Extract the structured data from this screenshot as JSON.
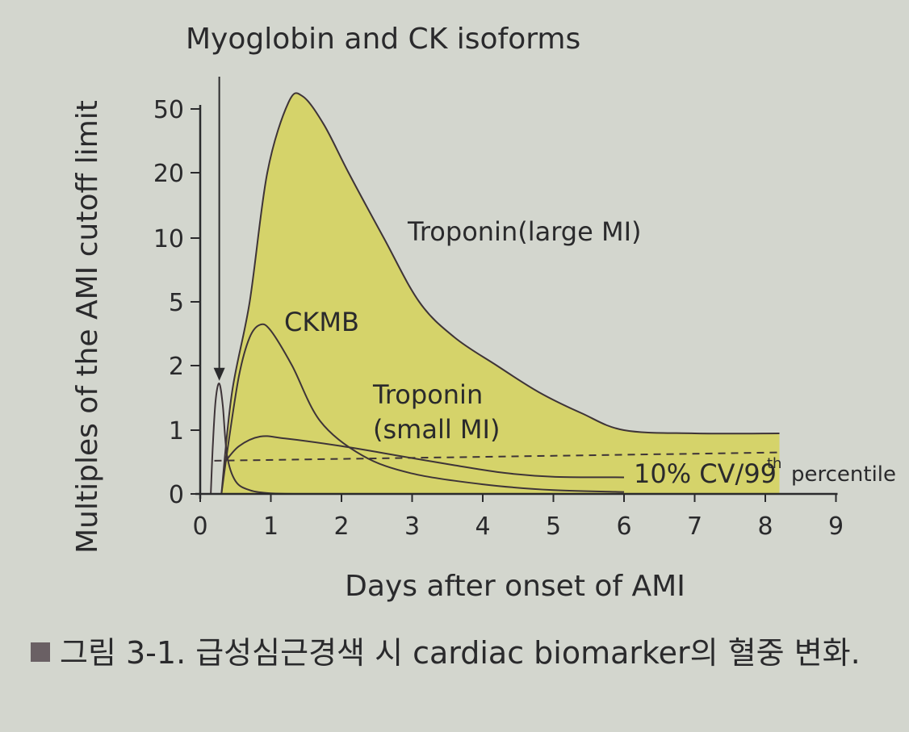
{
  "chart_data": {
    "type": "area",
    "title": "Myoglobin and CK isoforms",
    "xlabel": "Days after onset of AMI",
    "ylabel": "Multiples of the AMI cutoff limit",
    "x_ticks": [
      "0",
      "1",
      "2",
      "3",
      "4",
      "5",
      "6",
      "7",
      "8",
      "9"
    ],
    "y_ticks": [
      "0",
      "1",
      "2",
      "5",
      "10",
      "20",
      "50"
    ],
    "xlim": [
      0,
      9
    ],
    "y_scale": "nonlinear (log-like) with ticks 0, 1, 2, 5, 10, 20, 50",
    "ylim": [
      0,
      50
    ],
    "grid": false,
    "series": [
      {
        "name": "Troponin(large MI)",
        "color": "#d5d36a",
        "fill": true,
        "points": [
          [
            0.3,
            0
          ],
          [
            0.45,
            1.5
          ],
          [
            0.7,
            5
          ],
          [
            0.95,
            20
          ],
          [
            1.25,
            55
          ],
          [
            1.45,
            60
          ],
          [
            1.75,
            40
          ],
          [
            2.1,
            20
          ],
          [
            2.6,
            10
          ],
          [
            3.1,
            5
          ],
          [
            3.6,
            3
          ],
          [
            4.2,
            2
          ],
          [
            4.8,
            1.5
          ],
          [
            5.4,
            1.2
          ],
          [
            6.0,
            1.0
          ],
          [
            7.0,
            0.95
          ],
          [
            8.2,
            0.95
          ]
        ]
      },
      {
        "name": "Myoglobin and CK isoforms",
        "color": "#3e3438",
        "points": [
          [
            0.15,
            0
          ],
          [
            0.18,
            0.8
          ],
          [
            0.22,
            1.4
          ],
          [
            0.27,
            1.65
          ],
          [
            0.32,
            1.3
          ],
          [
            0.38,
            0.6
          ],
          [
            0.5,
            0.2
          ],
          [
            0.7,
            0.06
          ],
          [
            1.0,
            0.01
          ],
          [
            1.5,
            0
          ]
        ]
      },
      {
        "name": "CKMB",
        "color": "#3e3438",
        "points": [
          [
            0.3,
            0
          ],
          [
            0.4,
            0.8
          ],
          [
            0.55,
            1.8
          ],
          [
            0.7,
            3.0
          ],
          [
            0.85,
            3.6
          ],
          [
            1.0,
            3.3
          ],
          [
            1.3,
            2.0
          ],
          [
            1.7,
            1.1
          ],
          [
            2.3,
            0.6
          ],
          [
            3.0,
            0.32
          ],
          [
            4.0,
            0.15
          ],
          [
            5.0,
            0.06
          ],
          [
            6.0,
            0.03
          ]
        ]
      },
      {
        "name": "Troponin (small MI)",
        "color": "#3e3438",
        "points": [
          [
            0.35,
            0.5
          ],
          [
            0.55,
            0.75
          ],
          [
            0.85,
            0.9
          ],
          [
            1.2,
            0.87
          ],
          [
            2.0,
            0.75
          ],
          [
            2.8,
            0.6
          ],
          [
            3.6,
            0.45
          ],
          [
            4.3,
            0.33
          ],
          [
            5.0,
            0.27
          ],
          [
            6.0,
            0.26
          ]
        ]
      },
      {
        "name": "10% CV/99th percentile",
        "color": "#3e3438",
        "dashed": true,
        "points": [
          [
            0.2,
            0.52
          ],
          [
            8.2,
            0.65
          ]
        ]
      }
    ],
    "annotations": [
      {
        "text": "Troponin(large MI)",
        "x": 4.6,
        "y": 10
      },
      {
        "text": "CKMB",
        "x": 1.6,
        "y": 3.6
      },
      {
        "text": "Troponin",
        "x": 4.0,
        "y": 1.5
      },
      {
        "text": "(small MI)",
        "x": 4.0,
        "y": 1.0
      },
      {
        "text": "10% CV/99",
        "x": 6.1,
        "y": 0.3
      },
      {
        "text": "th",
        "x": 7.8,
        "y": 0.5
      },
      {
        "text": "percentile",
        "x": 8.4,
        "y": 0.3
      }
    ],
    "arrow": {
      "label": "Myoglobin and CK isoforms",
      "x": 0.27,
      "from_y": 60,
      "to_y": 1.7
    }
  },
  "caption": {
    "text": "그림 3-1. 급성심근경색 시 cardiac biomarker의 혈중 변화."
  }
}
